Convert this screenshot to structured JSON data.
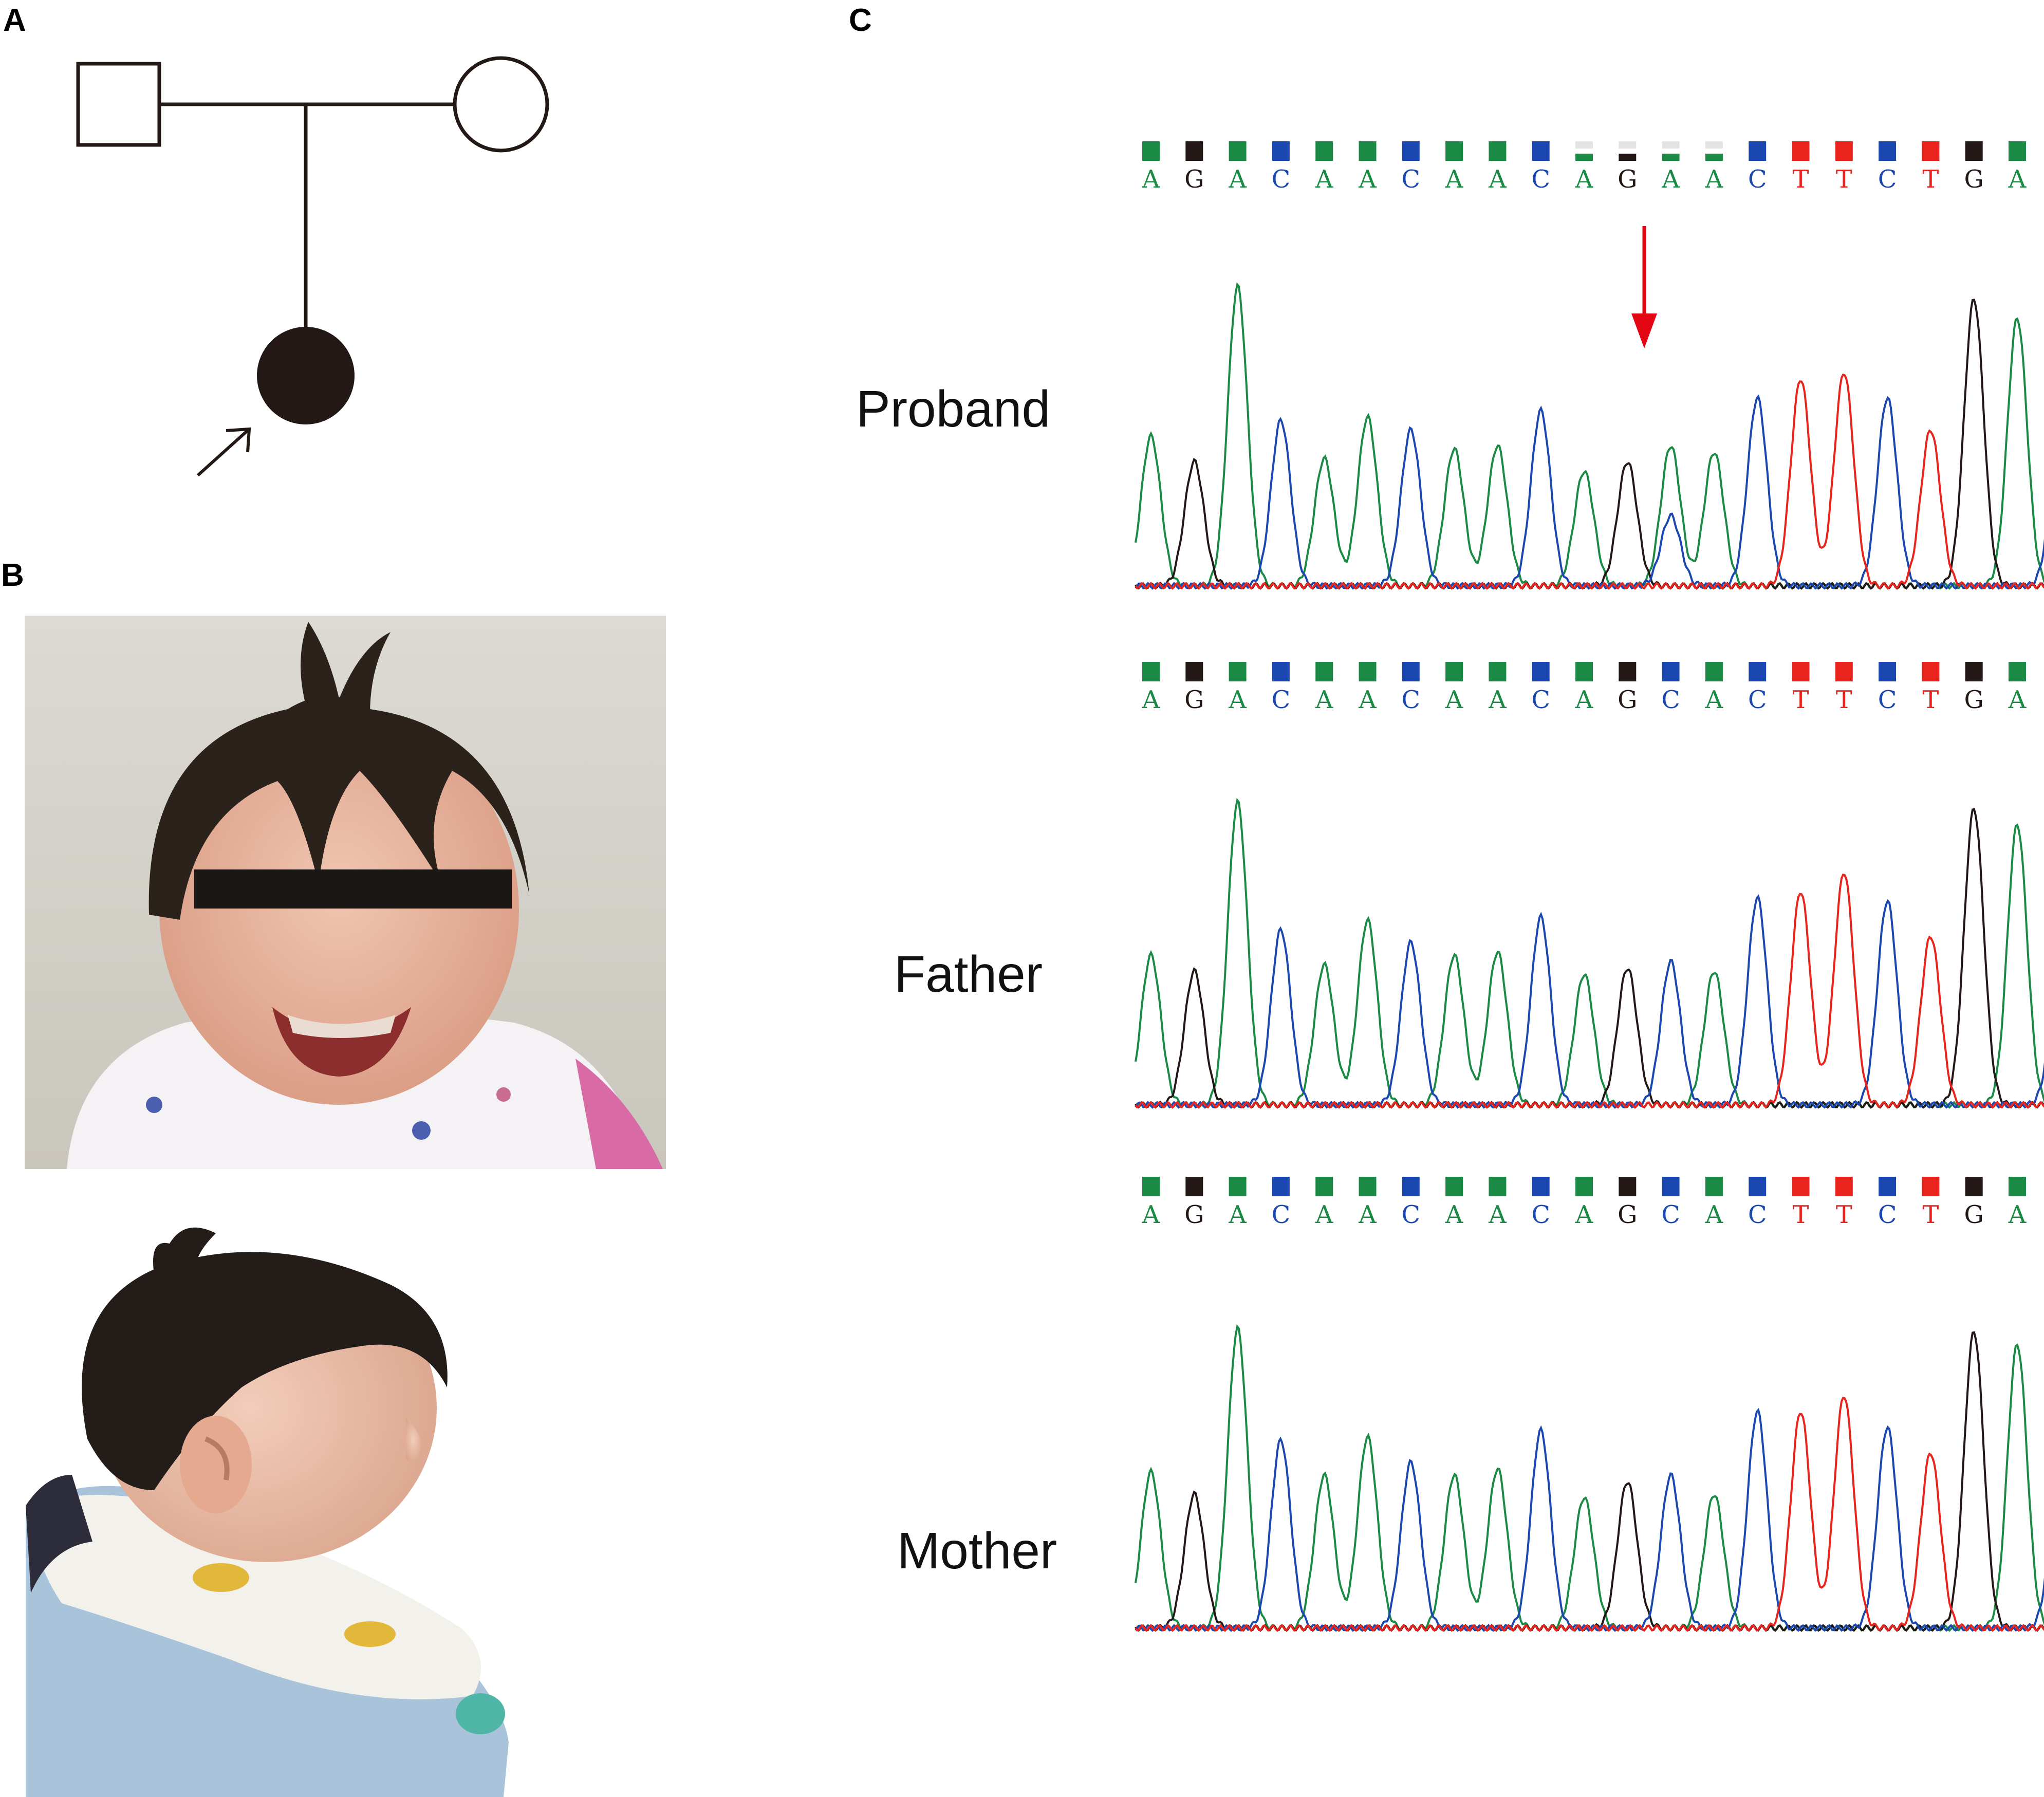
{
  "panels": {
    "a": "A",
    "b": "B",
    "c": "C"
  },
  "pedigree": {
    "father": {
      "shape": "square",
      "affected": false
    },
    "mother": {
      "shape": "circle",
      "affected": false
    },
    "child": {
      "shape": "circle",
      "affected": true,
      "proband": true
    }
  },
  "photos": {
    "front": "frontal-face-photo-eyes-masked",
    "profile": "lateral-profile-photo"
  },
  "colors": {
    "A": "#1a8a45",
    "G": "#231815",
    "C": "#1b48b0",
    "T": "#e8241c",
    "arrow": "#e30613",
    "faint": "#e3e3e3"
  },
  "chromatograms": [
    {
      "label": "Proband",
      "sequence": [
        "A",
        "G",
        "A",
        "C",
        "A",
        "A",
        "C",
        "A",
        "A",
        "C",
        "A",
        "G",
        "A",
        "A",
        "C",
        "T",
        "T",
        "C",
        "T",
        "G",
        "A",
        "C"
      ],
      "heterozygous_index": 12,
      "peak_heights": [
        0.47,
        0.39,
        0.94,
        0.52,
        0.4,
        0.53,
        0.49,
        0.43,
        0.44,
        0.55,
        0.36,
        0.39,
        0.44,
        0.42,
        0.59,
        0.65,
        0.67,
        0.59,
        0.49,
        0.9,
        0.84,
        0.52
      ],
      "secondary_peak": {
        "base": "C",
        "height": 0.22
      }
    },
    {
      "label": "Father",
      "sequence": [
        "A",
        "G",
        "A",
        "C",
        "A",
        "A",
        "C",
        "A",
        "A",
        "C",
        "A",
        "G",
        "C",
        "A",
        "C",
        "T",
        "T",
        "C",
        "T",
        "G",
        "A",
        "C"
      ],
      "heterozygous_index": null,
      "peak_heights": [
        0.47,
        0.42,
        0.95,
        0.55,
        0.44,
        0.58,
        0.51,
        0.47,
        0.48,
        0.59,
        0.41,
        0.43,
        0.45,
        0.42,
        0.65,
        0.67,
        0.73,
        0.64,
        0.53,
        0.93,
        0.88,
        0.47
      ]
    },
    {
      "label": "Mother",
      "sequence": [
        "A",
        "G",
        "A",
        "C",
        "A",
        "A",
        "C",
        "A",
        "A",
        "C",
        "A",
        "G",
        "C",
        "A",
        "C",
        "T",
        "T",
        "C",
        "T",
        "G",
        "A",
        "C"
      ],
      "heterozygous_index": null,
      "peak_heights": [
        0.49,
        0.42,
        0.94,
        0.59,
        0.48,
        0.6,
        0.52,
        0.48,
        0.5,
        0.62,
        0.41,
        0.46,
        0.48,
        0.42,
        0.68,
        0.68,
        0.73,
        0.63,
        0.55,
        0.93,
        0.89,
        0.56
      ]
    }
  ]
}
